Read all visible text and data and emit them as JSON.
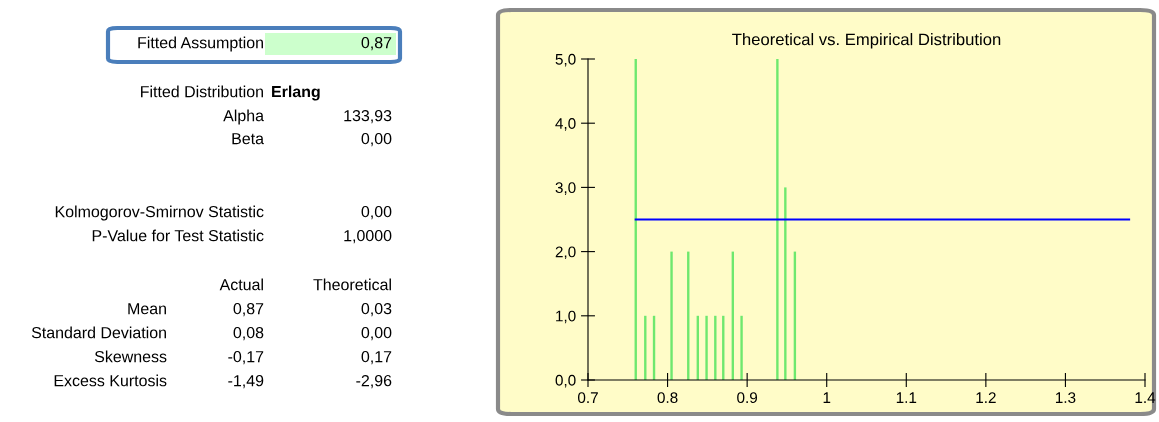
{
  "chart_data": [
    {
      "type": "other",
      "annotations": [
        "Fitted Assumption",
        "0,87",
        "Fitted Distribution",
        "Erlang",
        "Alpha",
        "133,93",
        "Beta",
        "0,00",
        "Kolmogorov-Smirnov Statistic",
        "0,00",
        "P-Value for Test Statistic",
        "1,0000",
        "Actual",
        "Theoretical",
        "Mean",
        "0,87",
        "0,03",
        "Standard Deviation",
        "0,08",
        "0,00",
        "Skewness",
        "-0,17",
        "0,17",
        "Excess Kurtosis",
        "-1,49",
        "-2,96"
      ]
    },
    {
      "type": "bar",
      "title": "Theoretical vs. Empirical Distribution",
      "series": [
        {
          "type": "bar",
          "color": "#6ee86e",
          "x": [
            0.76,
            0.772,
            0.783,
            0.805,
            0.826,
            0.838,
            0.849,
            0.86,
            0.87,
            0.882,
            0.893,
            0.938,
            0.948,
            0.96
          ],
          "values": [
            5,
            1,
            1,
            2,
            2,
            1,
            1,
            1,
            1,
            2,
            1,
            5,
            3,
            2
          ]
        },
        {
          "type": "line",
          "color": "#0000ff",
          "x": [
            0.76,
            1.38
          ],
          "values": [
            2.5,
            2.5
          ]
        }
      ],
      "xlim": [
        0.7,
        1.4
      ],
      "xticks": [
        0.7,
        0.8,
        0.9,
        1,
        1.1,
        1.2,
        1.3,
        1.4
      ],
      "ylim": [
        0,
        5
      ],
      "yticks": [
        {
          "value": 0,
          "label": "0,0"
        },
        {
          "value": 1,
          "label": "1,0"
        },
        {
          "value": 2,
          "label": "2,0"
        },
        {
          "value": 3,
          "label": "3,0"
        },
        {
          "value": 4,
          "label": "4,0"
        },
        {
          "value": 5,
          "label": "5,0"
        }
      ],
      "grid": false,
      "legend": false
    }
  ]
}
